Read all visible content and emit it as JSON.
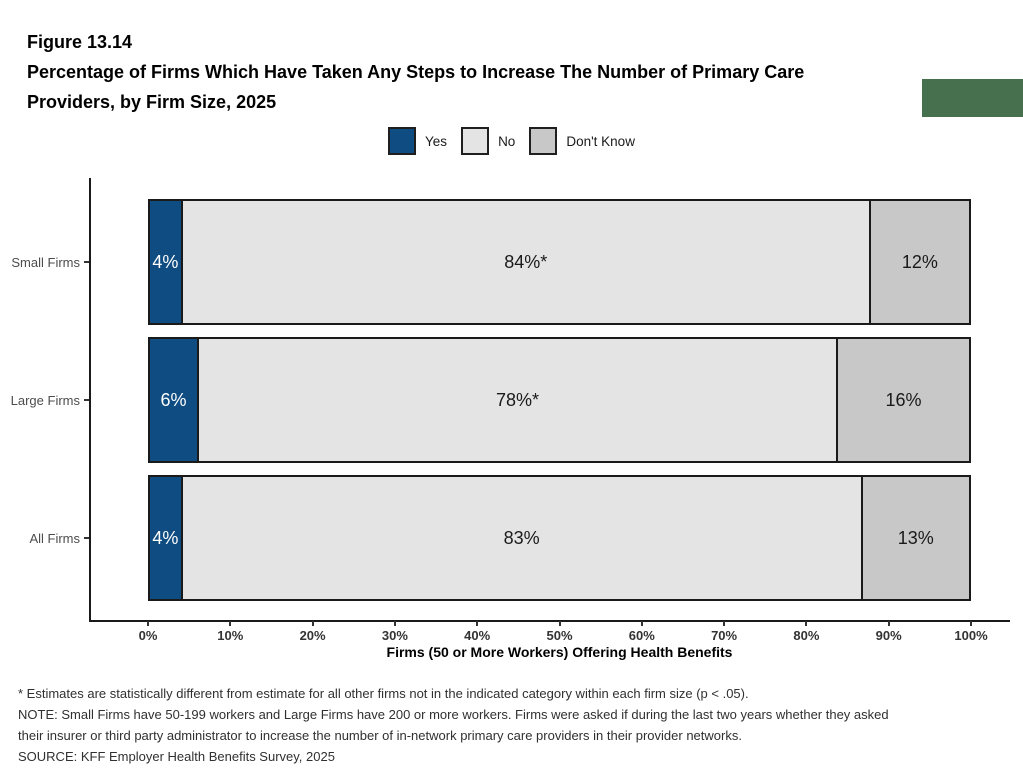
{
  "page": {
    "figure_number": "Figure 13.14",
    "title_line1": "Percentage of Firms Which Have Taken Any Steps to Increase The Number of Primary Care",
    "title_line2": "Providers, by Firm Size, 2025"
  },
  "legend": {
    "items": [
      {
        "label": "Yes",
        "color": "#0F4C81"
      },
      {
        "label": "No",
        "color": "#E4E4E4"
      },
      {
        "label": "Don't Know",
        "color": "#C8C8C8"
      }
    ]
  },
  "chart_data": {
    "type": "bar",
    "orientation": "horizontal",
    "stacked": true,
    "title": "Percentage of Firms Which Have Taken Any Steps to Increase The Number of Primary Care Providers, by Firm Size, 2025",
    "categories": [
      "Small Firms",
      "Large Firms",
      "All Firms"
    ],
    "series": [
      {
        "name": "Yes",
        "color": "#0F4C81",
        "text_color": "#FFFFFF",
        "values": [
          4,
          6,
          4
        ],
        "data_labels": [
          "4%",
          "6%",
          "4%"
        ]
      },
      {
        "name": "No",
        "color": "#E4E4E4",
        "text_color": "#1A1A1A",
        "values": [
          84,
          78,
          83
        ],
        "data_labels": [
          "84%*",
          "78%*",
          "83%"
        ]
      },
      {
        "name": "Don't Know",
        "color": "#C8C8C8",
        "text_color": "#1A1A1A",
        "values": [
          12,
          16,
          13
        ],
        "data_labels": [
          "12%",
          "16%",
          "13%"
        ]
      }
    ],
    "xlabel": "Firms (50 or More Workers) Offering Health Benefits",
    "x_ticks": [
      "0%",
      "10%",
      "20%",
      "30%",
      "40%",
      "50%",
      "60%",
      "70%",
      "80%",
      "90%",
      "100%"
    ],
    "xlim": [
      0,
      100
    ],
    "legend_position": "top",
    "grid": false
  },
  "footnotes": {
    "line1": "* Estimates are statistically different from estimate for all other firms not in the indicated category within each firm size (p < .05).",
    "line2": "NOTE: Small Firms have 50-199 workers and Large Firms have 200 or more workers.  Firms were asked if during the last two years whether they asked",
    "line3": "their insurer or third party administrator to increase the number of in-network primary care providers in their provider networks.",
    "line4": "SOURCE: KFF Employer Health Benefits Survey, 2025"
  },
  "colors": {
    "accent_green": "#47704F",
    "axis_line": "#1A1A1A",
    "tick_label": "#333333",
    "category_label": "#4D4D4D"
  }
}
